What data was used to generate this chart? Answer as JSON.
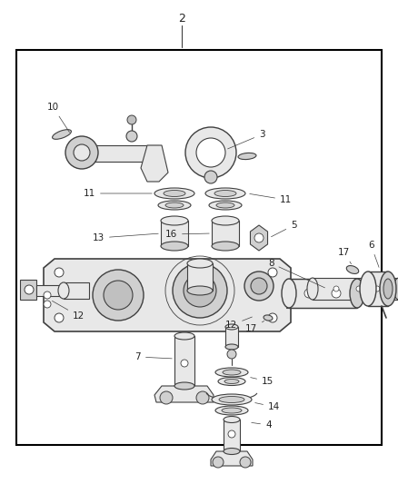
{
  "background_color": "#ffffff",
  "border_color": "#000000",
  "line_color": "#404040",
  "fig_width": 4.38,
  "fig_height": 5.33,
  "dpi": 100,
  "part_fill": "#e8e8e8",
  "part_fill2": "#d0d0d0",
  "part_fill3": "#c0c0c0",
  "white": "#ffffff",
  "label_fs": 7.5,
  "label_color": "#222222",
  "lw_main": 1.0,
  "lw_thin": 0.6,
  "lw_leader": 0.5
}
